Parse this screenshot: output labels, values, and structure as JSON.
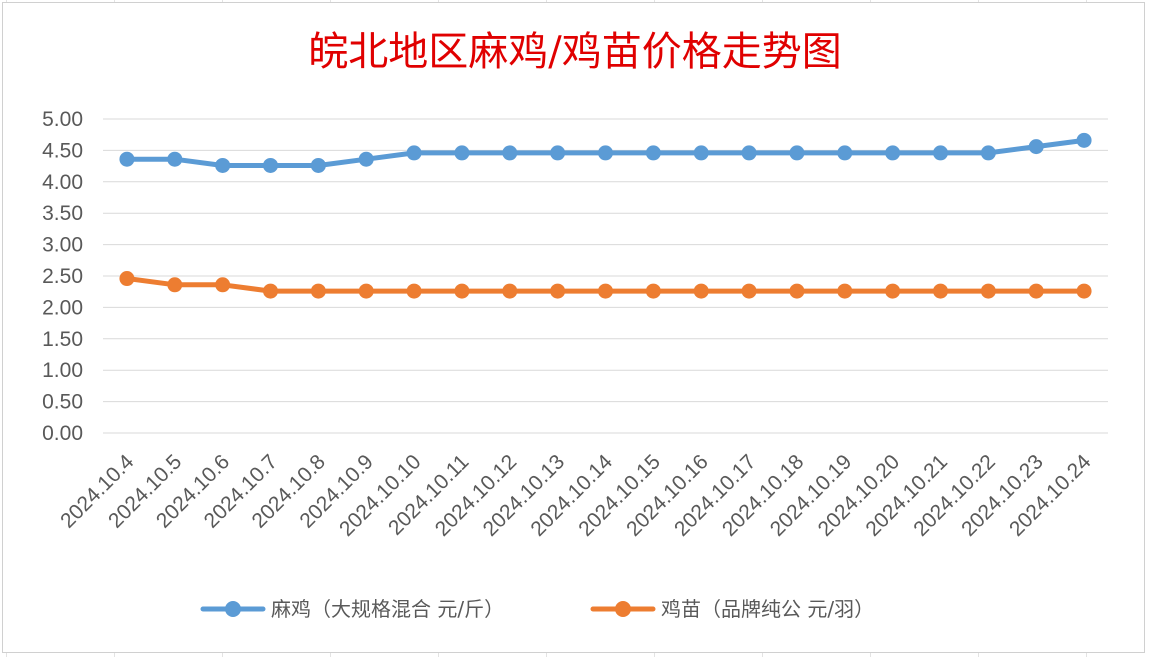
{
  "chart_data": {
    "type": "line",
    "title": "皖北地区麻鸡/鸡苗价格走势图",
    "xlabel": "",
    "ylabel": "",
    "categories": [
      "2024.10.4",
      "2024.10.5",
      "2024.10.6",
      "2024.10.7",
      "2024.10.8",
      "2024.10.9",
      "2024.10.10",
      "2024.10.11",
      "2024.10.12",
      "2024.10.13",
      "2024.10.14",
      "2024.10.15",
      "2024.10.16",
      "2024.10.17",
      "2024.10.18",
      "2024.10.19",
      "2024.10.20",
      "2024.10.21",
      "2024.10.22",
      "2024.10.23",
      "2024.10.24"
    ],
    "ylim": [
      0,
      5
    ],
    "yticks": [
      "0.00",
      "0.50",
      "1.00",
      "1.50",
      "2.00",
      "2.50",
      "3.00",
      "3.50",
      "4.00",
      "4.50",
      "5.00"
    ],
    "grid": true,
    "legend_position": "bottom",
    "series": [
      {
        "name": "麻鸡（大规格混合 元/斤）",
        "color": "#5b9bd5",
        "values": [
          4.36,
          4.36,
          4.26,
          4.26,
          4.26,
          4.36,
          4.46,
          4.46,
          4.46,
          4.46,
          4.46,
          4.46,
          4.46,
          4.46,
          4.46,
          4.46,
          4.46,
          4.46,
          4.46,
          4.56,
          4.66
        ]
      },
      {
        "name": "鸡苗（品牌纯公 元/羽）",
        "color": "#ed7d31",
        "values": [
          2.46,
          2.36,
          2.36,
          2.26,
          2.26,
          2.26,
          2.26,
          2.26,
          2.26,
          2.26,
          2.26,
          2.26,
          2.26,
          2.26,
          2.26,
          2.26,
          2.26,
          2.26,
          2.26,
          2.26,
          2.26
        ]
      }
    ]
  }
}
